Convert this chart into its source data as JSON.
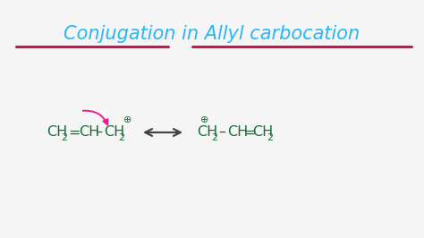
{
  "background_color": "#f5f5f5",
  "title_color": "#29b6f6",
  "title_underline_color": "#c2185b",
  "molecule_color": "#1b6b3a",
  "arrow_curve_color": "#e91e8c",
  "resonance_arrow_color": "#444444",
  "figsize": [
    4.74,
    2.66
  ],
  "dpi": 100,
  "title": "Conjugation in Allyl carbocation",
  "xlim": [
    0,
    474
  ],
  "ylim": [
    0,
    266
  ]
}
